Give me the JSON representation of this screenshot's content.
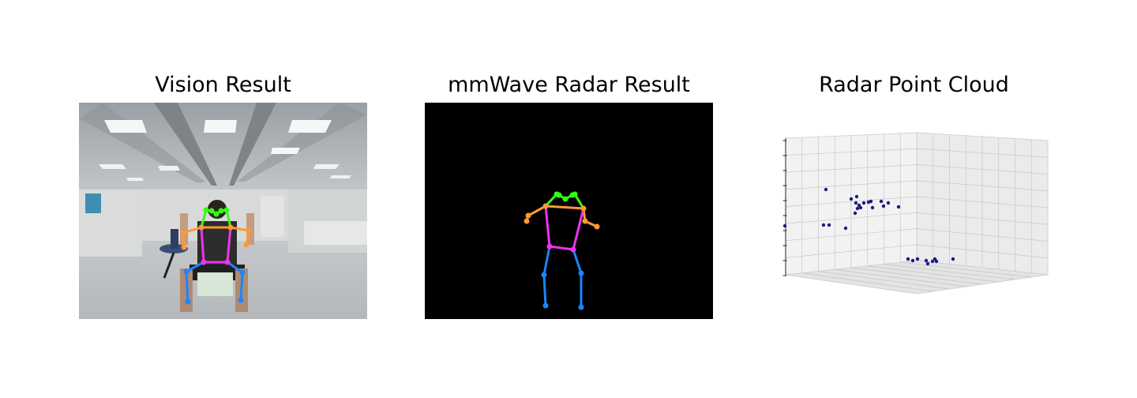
{
  "panels": {
    "vision": {
      "title": "Vision Result"
    },
    "radar": {
      "title": "mmWave Radar Result"
    },
    "pointcloud": {
      "title": "Radar Point Cloud"
    }
  },
  "colors": {
    "head": "#33ff11",
    "arms": "#ff9933",
    "torso": "#ee33ee",
    "legs": "#1a85ff",
    "points": "#1a1a80"
  },
  "icons": [
    "office-scene-photo",
    "skeleton-overlay",
    "3d-axes-box"
  ]
}
